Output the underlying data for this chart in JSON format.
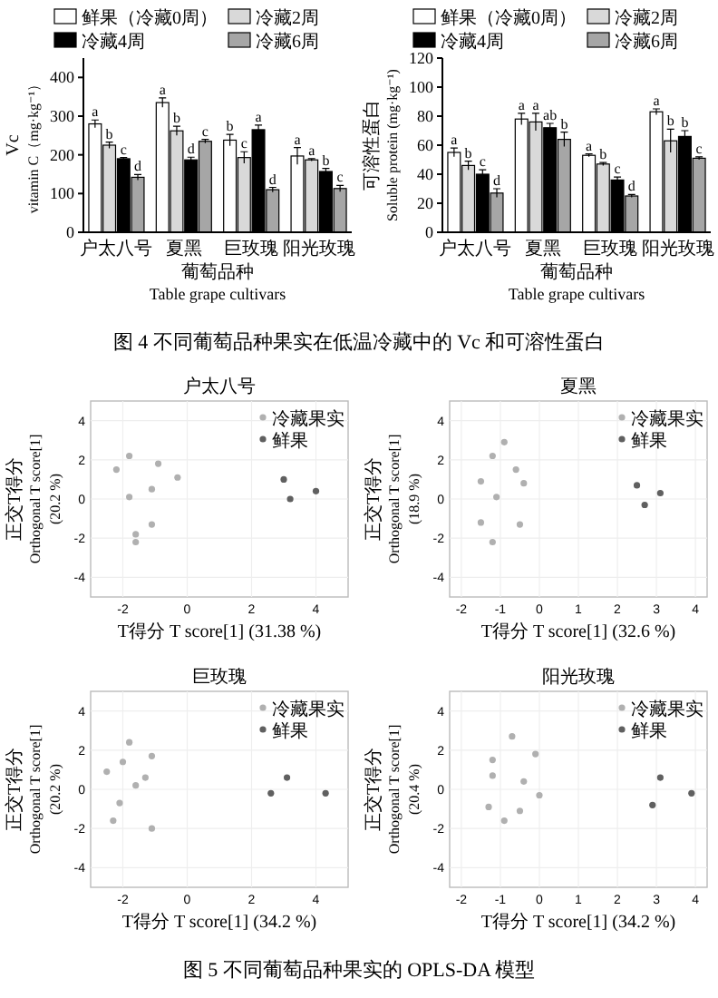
{
  "chart_data": [
    {
      "type": "bar",
      "ylabel": "Vc\nvitamin C（mg·kg⁻¹）",
      "xlabel": "葡萄品种\nTable grape cultivars",
      "categories": [
        "户太八号",
        "夏黑",
        "巨玫瑰",
        "阳光玫瑰"
      ],
      "ylim": [
        0,
        450
      ],
      "yticks": [
        0,
        100,
        200,
        300,
        400
      ],
      "legend": "top",
      "series": [
        {
          "name": "鲜果（冷藏0周）",
          "color": "#ffffff",
          "values": [
            280,
            335,
            238,
            197
          ],
          "errors": [
            10,
            12,
            15,
            22
          ],
          "value_labels": [
            "a",
            "a",
            "b",
            "a"
          ]
        },
        {
          "name": "冷藏2周",
          "color": "#d9d9d9",
          "values": [
            225,
            262,
            193,
            187
          ],
          "errors": [
            8,
            12,
            15,
            3
          ],
          "value_labels": [
            "b",
            "b",
            "c",
            "a"
          ]
        },
        {
          "name": "冷藏4周",
          "color": "#000000",
          "values": [
            190,
            187,
            265,
            157
          ],
          "errors": [
            3,
            7,
            12,
            8
          ],
          "value_labels": [
            "c",
            "d",
            "a",
            "b"
          ]
        },
        {
          "name": "冷藏6周",
          "color": "#a6a6a6",
          "values": [
            142,
            235,
            110,
            113
          ],
          "errors": [
            7,
            5,
            6,
            8
          ],
          "value_labels": [
            "d",
            "c",
            "d",
            "c"
          ]
        }
      ],
      "annotations": [
        "图 4 不同葡萄品种果实在低温冷藏中的 Vc 和可溶性蛋白"
      ]
    },
    {
      "type": "bar",
      "ylabel": "可溶性蛋白\nSoluble protein (mg·kg⁻¹)",
      "xlabel": "葡萄品种\nTable grape cultivars",
      "categories": [
        "户太八号",
        "夏黑",
        "巨玫瑰",
        "阳光玫瑰"
      ],
      "ylim": [
        0,
        120
      ],
      "yticks": [
        0,
        20,
        40,
        60,
        80,
        100,
        120
      ],
      "legend": "top",
      "series": [
        {
          "name": "鲜果（冷藏0周）",
          "color": "#ffffff",
          "values": [
            55,
            78,
            53,
            83
          ],
          "errors": [
            3,
            4,
            1,
            2
          ],
          "value_labels": [
            "a",
            "a",
            "a",
            "a"
          ]
        },
        {
          "name": "冷藏2周",
          "color": "#d9d9d9",
          "values": [
            46,
            76,
            47,
            63
          ],
          "errors": [
            3,
            6,
            1,
            8
          ],
          "value_labels": [
            "b",
            "a",
            "b",
            "b"
          ]
        },
        {
          "name": "冷藏4周",
          "color": "#000000",
          "values": [
            40,
            72,
            36,
            66
          ],
          "errors": [
            3,
            3,
            2,
            4
          ],
          "value_labels": [
            "c",
            "ab",
            "c",
            "b"
          ]
        },
        {
          "name": "冷藏6周",
          "color": "#a6a6a6",
          "values": [
            27,
            64,
            25,
            51
          ],
          "errors": [
            3,
            5,
            1,
            1
          ],
          "value_labels": [
            "d",
            "b",
            "d",
            "c"
          ]
        }
      ]
    },
    {
      "type": "scatter",
      "title": "户太八号",
      "xlabel": "T得分 T score[1] (31.38 %)",
      "ylabel": "正交T得分\nOrthogonal T score[1]\n(20.2 %)",
      "xlim": [
        -3,
        5
      ],
      "xticks": [
        -2,
        0,
        2,
        4
      ],
      "ylim": [
        -5,
        5
      ],
      "yticks": [
        -4,
        -2,
        0,
        2,
        4
      ],
      "grid": true,
      "legend": "top right",
      "marker": "circle",
      "series": [
        {
          "name": "冷藏果实",
          "color": "#b0b0b0",
          "x": [
            -1.8,
            -0.9,
            -2.2,
            -0.3,
            -1.1,
            -1.8,
            -1.1,
            -1.6,
            -1.6
          ],
          "values": [
            2.2,
            1.8,
            1.5,
            1.1,
            0.5,
            0.1,
            -1.3,
            -1.8,
            -2.2
          ]
        },
        {
          "name": "鲜果",
          "color": "#606060",
          "x": [
            3.0,
            4.0,
            3.2
          ],
          "values": [
            1.0,
            0.4,
            0.0
          ]
        }
      ]
    },
    {
      "type": "scatter",
      "title": "夏黑",
      "xlabel": "T得分 T score[1] (32.6 %)",
      "ylabel": "正交T得分\nOrthogonal T score[1]\n(18.9 %)",
      "xlim": [
        -2.3,
        4.3
      ],
      "xticks": [
        -2,
        -1,
        0,
        1,
        2,
        3,
        4
      ],
      "ylim": [
        -5,
        5
      ],
      "yticks": [
        -4,
        -2,
        0,
        2,
        4
      ],
      "grid": true,
      "legend": "top right",
      "marker": "circle",
      "series": [
        {
          "name": "冷藏果实",
          "color": "#b0b0b0",
          "x": [
            -0.9,
            -1.2,
            -0.6,
            -1.5,
            -0.4,
            -1.1,
            -1.5,
            -0.5,
            -1.2
          ],
          "values": [
            2.9,
            2.2,
            1.5,
            0.9,
            0.8,
            0.1,
            -1.2,
            -1.3,
            -2.2
          ]
        },
        {
          "name": "鲜果",
          "color": "#606060",
          "x": [
            2.5,
            3.1,
            2.7
          ],
          "values": [
            0.7,
            0.3,
            -0.3
          ]
        }
      ]
    },
    {
      "type": "scatter",
      "title": "巨玫瑰",
      "xlabel": "T得分 T score[1] (34.2 %)",
      "ylabel": "正交T得分\nOrthogonal T score[1]\n(20.2 %)",
      "xlim": [
        -3,
        5
      ],
      "xticks": [
        -2,
        0,
        2,
        4
      ],
      "ylim": [
        -5,
        5
      ],
      "yticks": [
        -4,
        -2,
        0,
        2,
        4
      ],
      "grid": true,
      "legend": "top right",
      "marker": "circle",
      "series": [
        {
          "name": "冷藏果实",
          "color": "#b0b0b0",
          "x": [
            -1.8,
            -1.1,
            -2.0,
            -2.5,
            -1.3,
            -1.6,
            -2.1,
            -2.3,
            -1.1
          ],
          "values": [
            2.4,
            1.7,
            1.4,
            0.9,
            0.6,
            0.2,
            -0.7,
            -1.6,
            -2.0
          ]
        },
        {
          "name": "鲜果",
          "color": "#606060",
          "x": [
            3.1,
            2.6,
            4.3
          ],
          "values": [
            0.6,
            -0.2,
            -0.2
          ]
        }
      ]
    },
    {
      "type": "scatter",
      "title": "阳光玫瑰",
      "xlabel": "T得分 T score[1] (34.2 %)",
      "ylabel": "正交T得分\nOrthogonal T score[1]\n(20.4 %)",
      "xlim": [
        -2.3,
        4.3
      ],
      "xticks": [
        -2,
        -1,
        0,
        1,
        2,
        3,
        4
      ],
      "ylim": [
        -5,
        5
      ],
      "yticks": [
        -4,
        -2,
        0,
        2,
        4
      ],
      "grid": true,
      "legend": "top right",
      "marker": "circle",
      "series": [
        {
          "name": "冷藏果实",
          "color": "#b0b0b0",
          "x": [
            -0.7,
            -1.2,
            -0.1,
            -1.2,
            -0.4,
            0.0,
            -1.3,
            -0.5,
            -0.9
          ],
          "values": [
            2.7,
            1.5,
            1.8,
            0.7,
            0.4,
            -0.3,
            -0.9,
            -1.1,
            -1.6
          ]
        },
        {
          "name": "鲜果",
          "color": "#606060",
          "x": [
            3.1,
            3.9,
            2.9
          ],
          "values": [
            0.6,
            -0.2,
            -0.8
          ]
        }
      ],
      "annotations": [
        "图 5 不同葡萄品种果实的 OPLS-DA 模型"
      ]
    }
  ]
}
